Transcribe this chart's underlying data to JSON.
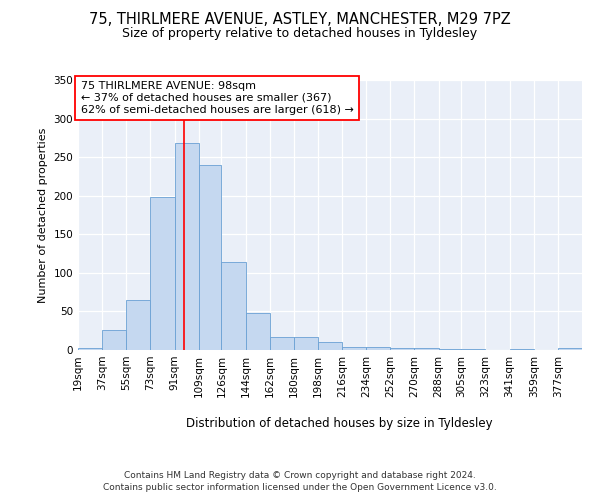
{
  "title1": "75, THIRLMERE AVENUE, ASTLEY, MANCHESTER, M29 7PZ",
  "title2": "Size of property relative to detached houses in Tyldesley",
  "xlabel": "Distribution of detached houses by size in Tyldesley",
  "ylabel": "Number of detached properties",
  "bin_labels": [
    "19sqm",
    "37sqm",
    "55sqm",
    "73sqm",
    "91sqm",
    "109sqm",
    "126sqm",
    "144sqm",
    "162sqm",
    "180sqm",
    "198sqm",
    "216sqm",
    "234sqm",
    "252sqm",
    "270sqm",
    "288sqm",
    "305sqm",
    "323sqm",
    "341sqm",
    "359sqm",
    "377sqm"
  ],
  "bin_edges": [
    19,
    37,
    55,
    73,
    91,
    109,
    126,
    144,
    162,
    180,
    198,
    216,
    234,
    252,
    270,
    288,
    305,
    323,
    341,
    359,
    377
  ],
  "bar_heights": [
    2,
    26,
    65,
    198,
    268,
    240,
    114,
    48,
    17,
    17,
    11,
    4,
    4,
    3,
    3,
    1,
    1,
    0,
    1,
    0,
    3
  ],
  "bar_color": "#c5d8f0",
  "bar_edge_color": "#6aa0d4",
  "red_line_x": 98,
  "annotation_line1": "75 THIRLMERE AVENUE: 98sqm",
  "annotation_line2": "← 37% of detached houses are smaller (367)",
  "annotation_line3": "62% of semi-detached houses are larger (618) →",
  "footnote1": "Contains HM Land Registry data © Crown copyright and database right 2024.",
  "footnote2": "Contains public sector information licensed under the Open Government Licence v3.0.",
  "ylim": [
    0,
    350
  ],
  "yticks": [
    0,
    50,
    100,
    150,
    200,
    250,
    300,
    350
  ],
  "bg_color": "#eaeff8",
  "title1_fontsize": 10.5,
  "title2_fontsize": 9
}
